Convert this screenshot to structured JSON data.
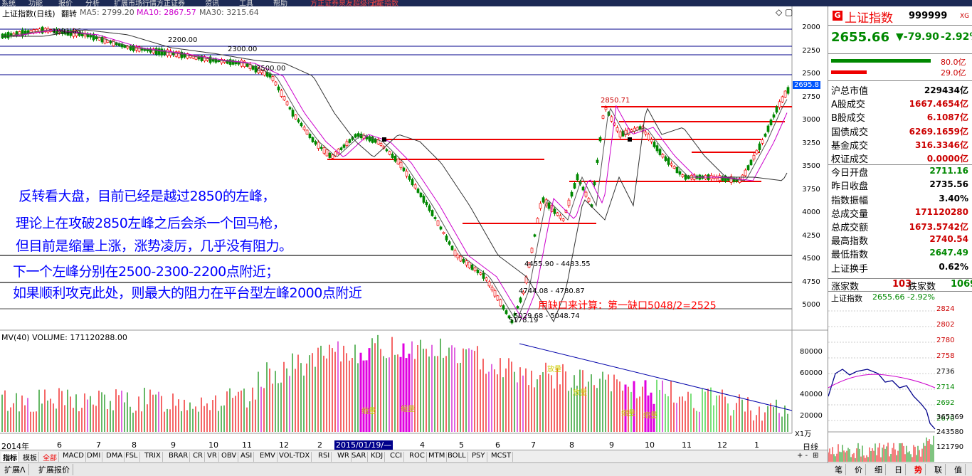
{
  "menubar": [
    "系统",
    "功能",
    "报价",
    "分析",
    "扩展市场行情",
    "方正证券",
    "资讯",
    "工具",
    "帮助",
    "方正证券泉友超级行情",
    "上证指数"
  ],
  "chart_header": {
    "title": "上证指数(日线)",
    "mode": "翻转",
    "ma5": "MA5: 2799.20",
    "ma10": "MA10: 2867.57",
    "ma30": "MA30: 3215.64"
  },
  "colors": {
    "up": "#ff0000",
    "down": "#008800",
    "ma5": "#555555",
    "ma10": "#cc00cc",
    "ma30": "#333333",
    "annot": "#0000ff",
    "panel_bg": "#ffffff"
  },
  "annotations": [
    "反转看大盘，目前已经是越过2850的左峰，",
    "理论上在攻破2850左峰之后会杀一个回马枪，",
    "但目前是缩量上涨，涨势凌厉，几乎没有阻力。",
    "下一个左峰分别在2500-2300-2200点附近；",
    "如果顺利攻克此处，则最大的阻力在平台型左峰2000点附近"
  ],
  "chart_labels": {
    "l1991": "1991.06",
    "l2200": "2200.00",
    "l2300": "2300.00",
    "l2500": "2500.00",
    "l2850": "2850.71",
    "gap1": "4455.90 - 4483.55",
    "gap2": "4744.08 - 4780.87",
    "gap3": "5029.68 - 5048.74",
    "low": "5178.19",
    "gap_note": "用缺口来计算：第一缺口5048/2=2525",
    "current": "2695.8"
  },
  "y_axis": [
    "2000",
    "2250",
    "2500",
    "2750",
    "3000",
    "3250",
    "3500",
    "3750",
    "4000",
    "4250",
    "4500",
    "4750",
    "5000"
  ],
  "volume": {
    "header": "MV(40) VOLUME: 171120288.00",
    "ticks": [
      "80000",
      "60000",
      "40000",
      "20000"
    ],
    "unit": "X1万",
    "notes": [
      "缩量",
      "缩量",
      "放量",
      "放量",
      "缩量",
      "缩量"
    ]
  },
  "x_axis": {
    "labels": [
      "2014年",
      "6",
      "7",
      "8",
      "9",
      "10",
      "11",
      "12",
      "2",
      "3",
      "4",
      "5",
      "6",
      "7",
      "8",
      "9",
      "10",
      "11",
      "12",
      "1"
    ],
    "highlight": "2015/01/19/—",
    "right_label": "日线"
  },
  "indicator_tabs": [
    "指标",
    "模板",
    "全部",
    "MACD",
    "DMI",
    "DMA",
    "FSL",
    "TRIX",
    "BRAR",
    "CR",
    "VR",
    "OBV",
    "ASI",
    "EMV",
    "VOL-TDX",
    "RSI",
    "WR",
    "SAR",
    "KDJ",
    "CCI",
    "ROC",
    "MTM",
    "BOLL",
    "PSY",
    "MCST"
  ],
  "bottom_tabs": [
    "扩展ᐱ",
    "扩展报价"
  ],
  "right_panel": {
    "name": "上证指数",
    "code": "999999",
    "xg": "XG",
    "price": "2655.66",
    "change": "▼-79.90",
    "pct": "-2.92%",
    "bar_vals": [
      "80.0亿",
      "29.0亿"
    ],
    "rows": [
      {
        "label": "沪总市值",
        "value": "229434亿",
        "color": "#000"
      },
      {
        "label": "A股成交",
        "value": "1667.4654亿",
        "color": "#c00"
      },
      {
        "label": "B股成交",
        "value": "6.1087亿",
        "color": "#c00"
      },
      {
        "label": "国债成交",
        "value": "6269.1659亿",
        "color": "#c00"
      },
      {
        "label": "基金成交",
        "value": "316.3346亿",
        "color": "#c00"
      },
      {
        "label": "权证成交",
        "value": "0.0000亿",
        "color": "#c00"
      },
      {
        "label": "今日开盘",
        "value": "2711.16",
        "color": "#008800"
      },
      {
        "label": "昨日收盘",
        "value": "2735.56",
        "color": "#000"
      },
      {
        "label": "指数振幅",
        "value": "3.40%",
        "color": "#000"
      },
      {
        "label": "总成交量",
        "value": "171120280",
        "color": "#c00"
      },
      {
        "label": "总成交额",
        "value": "1673.5742亿",
        "color": "#c00"
      },
      {
        "label": "最高指数",
        "value": "2740.54",
        "color": "#c00"
      },
      {
        "label": "最低指数",
        "value": "2647.49",
        "color": "#008800"
      },
      {
        "label": "上证换手",
        "value": "0.62%",
        "color": "#000"
      }
    ],
    "zhang_label": "涨家数",
    "zhang_val": "103",
    "die_label": "跌家数",
    "die_val": "1069",
    "mini_title": "上证指数",
    "mini_price": "2655.66 -2.92%",
    "mini_ticks": [
      "2824",
      "2802",
      "2780",
      "2758",
      "2736",
      "2714",
      "2692",
      "2670",
      "365369",
      "243580",
      "121790"
    ],
    "bottom_tabs": [
      "笔",
      "价",
      "细",
      "日",
      "势",
      "联",
      "值"
    ]
  }
}
